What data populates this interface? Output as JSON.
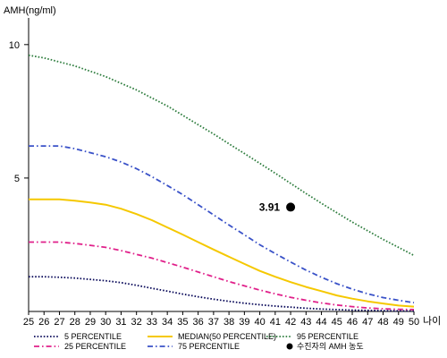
{
  "chart_data": {
    "type": "line",
    "ylabel": "AMH(ng/ml)",
    "xlabel": "나이",
    "xlim": [
      25,
      50
    ],
    "ylim": [
      0,
      11
    ],
    "y_ticks": [
      5,
      10
    ],
    "x": [
      25,
      26,
      27,
      28,
      29,
      30,
      31,
      32,
      33,
      34,
      35,
      36,
      37,
      38,
      39,
      40,
      41,
      42,
      43,
      44,
      45,
      46,
      47,
      48,
      49,
      50
    ],
    "x_tick_labels": [
      "25",
      "26",
      "27",
      "28",
      "29",
      "30",
      "31",
      "32",
      "33",
      "34",
      "35",
      "36",
      "37",
      "38",
      "39",
      "40",
      "41",
      "42",
      "43",
      "44",
      "45",
      "46",
      "47",
      "48",
      "49",
      "50"
    ],
    "grid": false,
    "legend_position": "bottom",
    "series": [
      {
        "name": "5 PERCENTILE",
        "color": "#0a0a5a",
        "dash": "dotted",
        "values": [
          1.3,
          1.3,
          1.28,
          1.25,
          1.2,
          1.15,
          1.08,
          0.98,
          0.87,
          0.76,
          0.65,
          0.55,
          0.46,
          0.38,
          0.31,
          0.25,
          0.2,
          0.16,
          0.12,
          0.09,
          0.07,
          0.05,
          0.04,
          0.03,
          0.02,
          0.02
        ]
      },
      {
        "name": "75 PERCENTILE",
        "color": "#3a52c8",
        "dash": "dashdot",
        "values": [
          6.2,
          6.2,
          6.2,
          6.1,
          5.95,
          5.8,
          5.6,
          5.35,
          5.05,
          4.72,
          4.38,
          4.0,
          3.62,
          3.24,
          2.87,
          2.5,
          2.17,
          1.85,
          1.55,
          1.28,
          1.04,
          0.84,
          0.66,
          0.52,
          0.42,
          0.33
        ]
      },
      {
        "name": "25 PERCENTILE",
        "color": "#e0208a",
        "dash": "dashdot",
        "values": [
          2.6,
          2.6,
          2.6,
          2.55,
          2.48,
          2.4,
          2.28,
          2.14,
          2.0,
          1.83,
          1.66,
          1.48,
          1.3,
          1.12,
          0.96,
          0.8,
          0.66,
          0.53,
          0.42,
          0.32,
          0.24,
          0.18,
          0.13,
          0.1,
          0.08,
          0.07
        ]
      },
      {
        "name": "95 PERCENTILE",
        "color": "#2e7d3e",
        "dash": "dotted",
        "values": [
          9.6,
          9.5,
          9.35,
          9.2,
          9.0,
          8.8,
          8.55,
          8.3,
          8.0,
          7.7,
          7.35,
          7.0,
          6.65,
          6.28,
          5.92,
          5.55,
          5.18,
          4.8,
          4.42,
          4.05,
          3.7,
          3.35,
          3.02,
          2.7,
          2.4,
          2.1
        ]
      },
      {
        "name": "MEDIAN(50 PERCENTILE)",
        "color": "#f5c800",
        "dash": "solid",
        "values": [
          4.2,
          4.2,
          4.2,
          4.15,
          4.08,
          4.0,
          3.85,
          3.65,
          3.42,
          3.15,
          2.88,
          2.6,
          2.32,
          2.05,
          1.78,
          1.52,
          1.3,
          1.1,
          0.92,
          0.76,
          0.6,
          0.48,
          0.38,
          0.3,
          0.22,
          0.18
        ]
      }
    ],
    "annotations": [
      {
        "type": "point",
        "x": 42,
        "y": 3.91,
        "label": "3.91",
        "color": "#000000"
      }
    ],
    "legend_entries": [
      {
        "label": "5 PERCENTILE",
        "color": "#0a0a5a",
        "dash": "dotted",
        "kind": "line"
      },
      {
        "label": "25 PERCENTILE",
        "color": "#e0208a",
        "dash": "dashdot",
        "kind": "line"
      },
      {
        "label": "MEDIAN(50 PERCENTILE)",
        "color": "#f5c800",
        "dash": "solid",
        "kind": "line"
      },
      {
        "label": "75 PERCENTILE",
        "color": "#3a52c8",
        "dash": "dashdot",
        "kind": "line"
      },
      {
        "label": "95 PERCENTILE",
        "color": "#2e7d3e",
        "dash": "dotted",
        "kind": "line"
      },
      {
        "label": "수진자의 AMH 농도",
        "color": "#000000",
        "kind": "marker"
      }
    ]
  }
}
